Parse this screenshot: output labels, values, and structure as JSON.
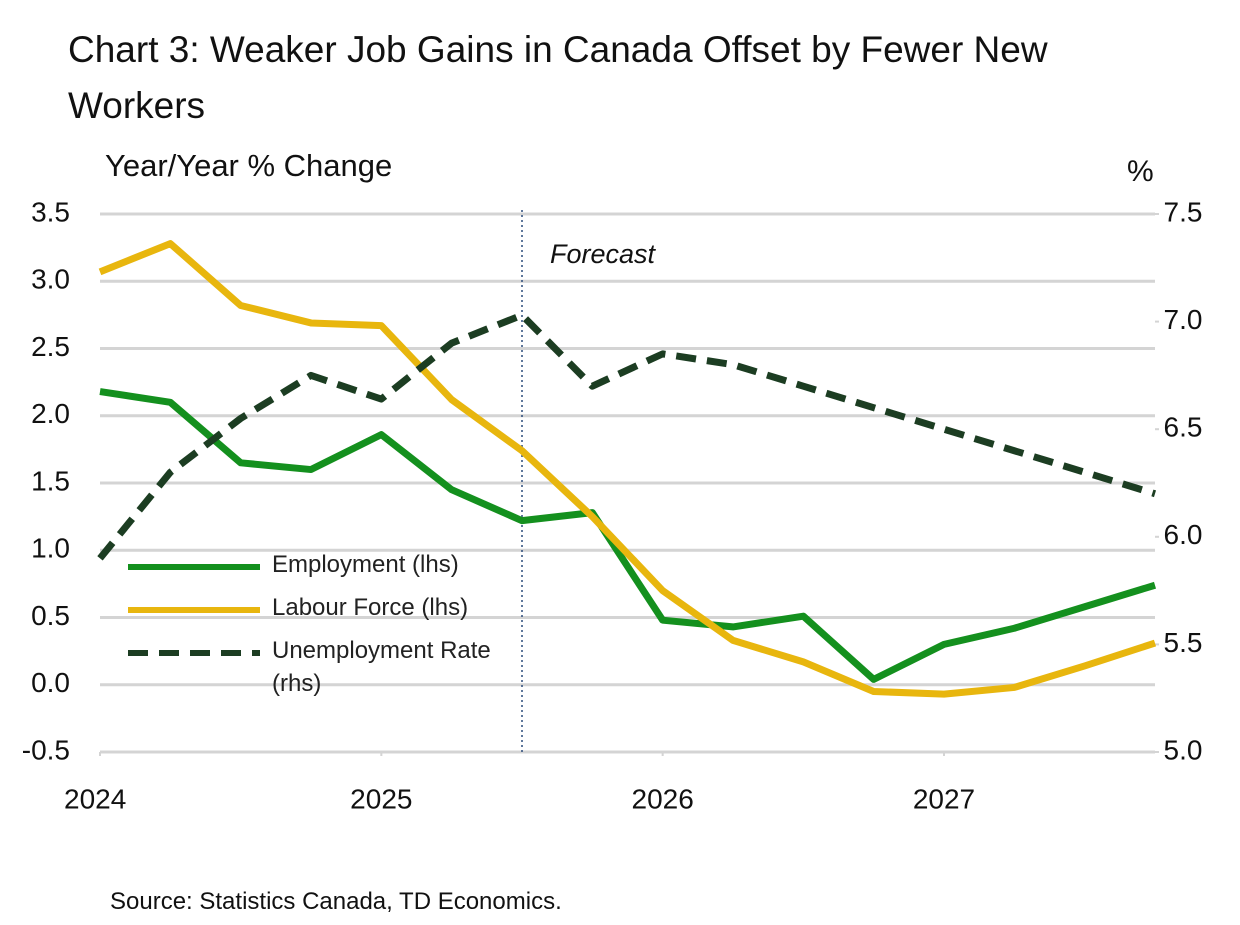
{
  "chart_data": {
    "type": "line",
    "title": "Chart 3: Weaker Job Gains in Canada Offset by Fewer New Workers",
    "y_label": "Year/Year % Change",
    "y2_label": "%",
    "annotation": "Forecast",
    "forecast_start": 2025.5,
    "source": "Source: Statistics Canada, TD Economics.",
    "x": [
      2024,
      2024.25,
      2024.5,
      2024.75,
      2025,
      2025.25,
      2025.5,
      2025.75,
      2026,
      2026.25,
      2026.5,
      2026.75,
      2027,
      2027.25,
      2027.5,
      2027.75
    ],
    "xlim": [
      2024,
      2027.75
    ],
    "xticks": [
      2024,
      2025,
      2026,
      2027
    ],
    "ylim": [
      -0.5,
      3.5
    ],
    "yticks": [
      -0.5,
      {
        "value": 0,
        "label": "0.0"
      },
      0.5,
      {
        "value": 1,
        "label": "1.0"
      },
      1.5,
      {
        "value": 2,
        "label": "2.0"
      },
      2.5,
      {
        "value": 3,
        "label": "3.0"
      },
      3.5
    ],
    "y2lim": [
      5,
      7.5
    ],
    "y2ticks": [
      {
        "value": 5,
        "label": "5.0"
      },
      5.5,
      {
        "value": 6,
        "label": "6.0"
      },
      6.5,
      {
        "value": 7,
        "label": "7.0"
      },
      7.5
    ],
    "grid": true,
    "legend": "lower left",
    "series": [
      {
        "name": "Employment (lhs)",
        "color": "#14901e",
        "dash": false,
        "values": [
          2.18,
          2.1,
          1.65,
          1.6,
          1.86,
          1.45,
          1.22,
          1.28,
          0.48,
          0.43,
          0.51,
          0.04,
          0.3,
          0.42,
          0.58,
          0.74
        ]
      },
      {
        "name": "Labour Force (lhs)",
        "color": "#e8b60e",
        "dash": false,
        "values": [
          3.07,
          3.28,
          2.82,
          2.69,
          2.67,
          2.12,
          1.74,
          1.25,
          0.7,
          0.33,
          0.17,
          -0.05,
          -0.07,
          -0.02,
          0.14,
          0.31
        ]
      },
      {
        "name": "Unemployment Rate (rhs)",
        "color": "#1c3d22",
        "dash": true,
        "axis": "y2",
        "values": [
          5.9,
          6.3,
          6.55,
          6.75,
          6.64,
          6.9,
          7.03,
          6.7,
          6.85,
          6.8,
          6.7,
          6.6,
          6.5,
          6.4,
          6.3,
          6.2
        ]
      }
    ]
  }
}
